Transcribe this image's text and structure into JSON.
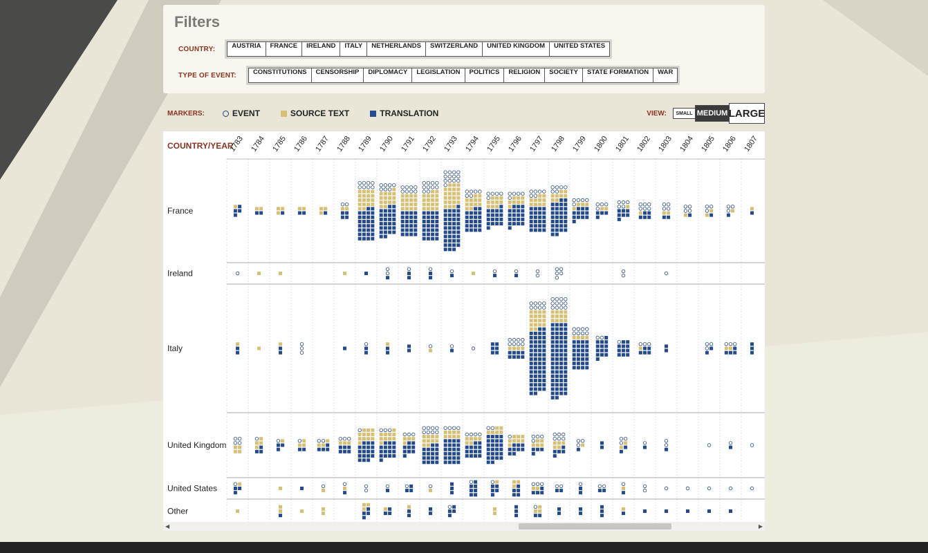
{
  "filters": {
    "title": "Filters",
    "country_label": "COUNTRY:",
    "countries": [
      "AUSTRIA",
      "FRANCE",
      "IRELAND",
      "ITALY",
      "NETHERLANDS",
      "SWITZERLAND",
      "UNITED KINGDOM",
      "UNITED STATES"
    ],
    "event_label": "TYPE OF EVENT:",
    "events": [
      "CONSTITUTIONS",
      "CENSORSHIP",
      "DIPLOMACY",
      "LEGISLATION",
      "POLITICS",
      "RELIGION",
      "SOCIETY",
      "STATE FORMATION",
      "WAR"
    ]
  },
  "markers": {
    "label": "MARKERS:",
    "event": "EVENT",
    "source_text": "SOURCE TEXT",
    "translation": "TRANSLATION",
    "colors": {
      "event": "#22457a",
      "source_text": "#d8bf76",
      "translation": "#234a8c"
    }
  },
  "view": {
    "label": "VIEW:",
    "small": "SMALL",
    "medium": "MEDIUM",
    "large": "LARGE",
    "selected": "MEDIUM"
  },
  "grid": {
    "header_label": "COUNTRY/YEAR",
    "years": [
      "1783",
      "1784",
      "1785",
      "1786",
      "1787",
      "1788",
      "1789",
      "1790",
      "1791",
      "1792",
      "1793",
      "1794",
      "1795",
      "1796",
      "1797",
      "1798",
      "1799",
      "1800",
      "1801",
      "1802",
      "1803",
      "1804",
      "1805",
      "1806",
      "1807"
    ],
    "rows": [
      {
        "country": "France",
        "cells": [
          [
            0,
            1,
            4
          ],
          [
            0,
            2,
            2
          ],
          [
            0,
            3,
            1
          ],
          [
            0,
            2,
            2
          ],
          [
            0,
            3,
            1
          ],
          [
            2,
            2,
            4
          ],
          [
            8,
            18,
            30
          ],
          [
            7,
            15,
            28
          ],
          [
            8,
            16,
            24
          ],
          [
            10,
            18,
            28
          ],
          [
            13,
            22,
            40
          ],
          [
            6,
            12,
            22
          ],
          [
            5,
            10,
            18
          ],
          [
            5,
            8,
            20
          ],
          [
            6,
            10,
            24
          ],
          [
            6,
            8,
            32
          ],
          [
            5,
            4,
            12
          ],
          [
            4,
            2,
            4
          ],
          [
            5,
            1,
            7
          ],
          [
            6,
            1,
            5
          ],
          [
            4,
            2,
            2
          ],
          [
            4,
            1,
            1
          ],
          [
            3,
            2,
            1
          ],
          [
            3,
            1,
            1
          ],
          [
            0,
            1,
            1
          ]
        ]
      },
      {
        "country": "Ireland",
        "cells": [
          [
            1,
            0,
            0
          ],
          [
            0,
            1,
            0
          ],
          [
            0,
            1,
            0
          ],
          [
            0,
            0,
            0
          ],
          [
            0,
            0,
            0
          ],
          [
            0,
            1,
            0
          ],
          [
            0,
            0,
            1
          ],
          [
            2,
            0,
            1
          ],
          [
            1,
            0,
            2
          ],
          [
            1,
            0,
            2
          ],
          [
            1,
            0,
            1
          ],
          [
            0,
            1,
            0
          ],
          [
            1,
            0,
            1
          ],
          [
            1,
            0,
            1
          ],
          [
            2,
            0,
            0
          ],
          [
            5,
            0,
            0
          ],
          [
            0,
            0,
            0
          ],
          [
            0,
            0,
            0
          ],
          [
            2,
            0,
            0
          ],
          [
            0,
            0,
            0
          ],
          [
            1,
            0,
            0
          ],
          [
            0,
            0,
            0
          ],
          [
            0,
            0,
            0
          ],
          [
            0,
            0,
            0
          ],
          [
            0,
            0,
            0
          ]
        ]
      },
      {
        "country": "Italy",
        "cells": [
          [
            0,
            1,
            2
          ],
          [
            0,
            1,
            0
          ],
          [
            0,
            1,
            2
          ],
          [
            3,
            0,
            0
          ],
          [
            0,
            0,
            0
          ],
          [
            0,
            0,
            1
          ],
          [
            1,
            0,
            2
          ],
          [
            0,
            1,
            2
          ],
          [
            0,
            0,
            2
          ],
          [
            1,
            1,
            0
          ],
          [
            1,
            0,
            1
          ],
          [
            1,
            0,
            0
          ],
          [
            0,
            0,
            6
          ],
          [
            8,
            4,
            8
          ],
          [
            8,
            18,
            60
          ],
          [
            12,
            12,
            70
          ],
          [
            8,
            4,
            28
          ],
          [
            2,
            0,
            14
          ],
          [
            1,
            0,
            11
          ],
          [
            3,
            1,
            5
          ],
          [
            0,
            0,
            2
          ],
          [
            0,
            0,
            0
          ],
          [
            3,
            0,
            2
          ],
          [
            3,
            2,
            4
          ],
          [
            0,
            0,
            3
          ]
        ]
      },
      {
        "country": "United Kingdom",
        "cells": [
          [
            4,
            4,
            0
          ],
          [
            1,
            4,
            3
          ],
          [
            1,
            1,
            3
          ],
          [
            1,
            3,
            2
          ],
          [
            2,
            3,
            4
          ],
          [
            3,
            3,
            6
          ],
          [
            1,
            12,
            18
          ],
          [
            3,
            10,
            16
          ],
          [
            3,
            4,
            9
          ],
          [
            8,
            10,
            18
          ],
          [
            4,
            8,
            24
          ],
          [
            4,
            6,
            14
          ],
          [
            2,
            6,
            26
          ],
          [
            1,
            8,
            9
          ],
          [
            4,
            5,
            4
          ],
          [
            6,
            5,
            5
          ],
          [
            3,
            1,
            1
          ],
          [
            0,
            0,
            2
          ],
          [
            3,
            2,
            2
          ],
          [
            1,
            0,
            1
          ],
          [
            2,
            0,
            1
          ],
          [
            0,
            0,
            0
          ],
          [
            1,
            0,
            0
          ],
          [
            1,
            0,
            1
          ],
          [
            1,
            0,
            0
          ]
        ]
      },
      {
        "country": "United States",
        "cells": [
          [
            1,
            1,
            3
          ],
          [
            0,
            0,
            0
          ],
          [
            0,
            1,
            0
          ],
          [
            0,
            0,
            1
          ],
          [
            1,
            1,
            0
          ],
          [
            1,
            1,
            1
          ],
          [
            2,
            0,
            0
          ],
          [
            1,
            0,
            1
          ],
          [
            1,
            0,
            3
          ],
          [
            1,
            1,
            0
          ],
          [
            0,
            0,
            3
          ],
          [
            1,
            0,
            7
          ],
          [
            1,
            1,
            5
          ],
          [
            0,
            3,
            5
          ],
          [
            3,
            2,
            4
          ],
          [
            2,
            0,
            2
          ],
          [
            1,
            0,
            2
          ],
          [
            2,
            0,
            2
          ],
          [
            1,
            1,
            1
          ],
          [
            2,
            0,
            0
          ],
          [
            1,
            0,
            0
          ],
          [
            1,
            0,
            0
          ],
          [
            1,
            0,
            0
          ],
          [
            1,
            0,
            0
          ],
          [
            1,
            0,
            0
          ]
        ]
      },
      {
        "country": "Other",
        "cells": [
          [
            0,
            1,
            0
          ],
          [
            0,
            0,
            0
          ],
          [
            0,
            2,
            1
          ],
          [
            0,
            1,
            0
          ],
          [
            0,
            2,
            0
          ],
          [
            0,
            0,
            0
          ],
          [
            0,
            3,
            4
          ],
          [
            0,
            1,
            3
          ],
          [
            0,
            1,
            2
          ],
          [
            0,
            0,
            2
          ],
          [
            1,
            0,
            4
          ],
          [
            0,
            0,
            0
          ],
          [
            0,
            2,
            0
          ],
          [
            0,
            0,
            3
          ],
          [
            1,
            3,
            2
          ],
          [
            0,
            0,
            2
          ],
          [
            0,
            0,
            2
          ],
          [
            0,
            0,
            3
          ],
          [
            0,
            1,
            1
          ],
          [
            0,
            0,
            1
          ],
          [
            0,
            0,
            1
          ],
          [
            0,
            0,
            1
          ],
          [
            0,
            0,
            1
          ],
          [
            0,
            0,
            1
          ],
          [
            0,
            0,
            0
          ]
        ]
      }
    ]
  }
}
